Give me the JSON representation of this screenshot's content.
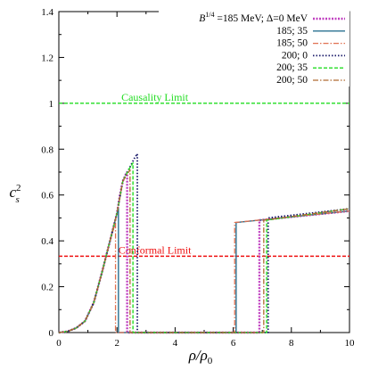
{
  "chart_data": {
    "type": "line",
    "xlabel": "ρ/ρ",
    "xlabel_sub": "0",
    "ylabel": "c",
    "ylabel_sup": "2",
    "ylabel_sub": "s",
    "xlim": [
      0,
      10
    ],
    "ylim": [
      0,
      1.4
    ],
    "xticks": [
      "0",
      "2",
      "4",
      "6",
      "8",
      "10"
    ],
    "yticks": [
      "0",
      "0.2",
      "0.4",
      "0.6",
      "0.8",
      "1",
      "1.2",
      "1.4"
    ],
    "legend_position": "top-right",
    "reference_lines": [
      {
        "label": "Causality Limit",
        "y": 1.0,
        "color": "#22dd22"
      },
      {
        "label": "Conformal Limit",
        "y": 0.333,
        "color": "#ee1111"
      }
    ],
    "series": [
      {
        "name": "B^{1/4}=185 MeV; Δ=0 MeV",
        "color": "#c040c0",
        "dash": "2,1.5",
        "width": 2.4,
        "x": [
          0,
          0.3,
          0.6,
          0.9,
          1.2,
          1.5,
          1.8,
          2.0,
          2.1,
          2.2,
          2.3,
          2.35,
          2.35,
          6.9,
          6.9,
          10
        ],
        "y": [
          0,
          0.005,
          0.02,
          0.05,
          0.13,
          0.27,
          0.42,
          0.52,
          0.6,
          0.66,
          0.69,
          0.7,
          0,
          0,
          0.49,
          0.53
        ]
      },
      {
        "name": "185; 35",
        "color": "#2a7090",
        "dash": "",
        "width": 1.4,
        "x": [
          0,
          0.3,
          0.6,
          0.9,
          1.2,
          1.5,
          1.8,
          2.0,
          2.05,
          2.05,
          6.1,
          6.1,
          10
        ],
        "y": [
          0,
          0.005,
          0.02,
          0.05,
          0.13,
          0.27,
          0.42,
          0.52,
          0.54,
          0,
          0,
          0.48,
          0.53
        ]
      },
      {
        "name": "185; 50",
        "color": "#e07050",
        "dash": "6,2,1.5,2",
        "width": 1.3,
        "x": [
          0,
          0.3,
          0.6,
          0.9,
          1.2,
          1.5,
          1.8,
          1.95,
          1.95,
          6.05,
          6.05,
          10
        ],
        "y": [
          0,
          0.005,
          0.02,
          0.05,
          0.13,
          0.27,
          0.42,
          0.48,
          0,
          0,
          0.48,
          0.53
        ]
      },
      {
        "name": "200; 0",
        "color": "#1a1a6a",
        "dash": "1.5,2",
        "width": 1.8,
        "x": [
          0,
          0.3,
          0.6,
          0.9,
          1.2,
          1.5,
          1.8,
          2.0,
          2.2,
          2.4,
          2.6,
          2.7,
          2.7,
          7.2,
          7.2,
          10
        ],
        "y": [
          0,
          0.005,
          0.02,
          0.05,
          0.13,
          0.27,
          0.42,
          0.52,
          0.66,
          0.71,
          0.76,
          0.78,
          0,
          0,
          0.5,
          0.54
        ]
      },
      {
        "name": "200; 35",
        "color": "#22dd22",
        "dash": "4,2",
        "width": 1.4,
        "x": [
          0,
          0.3,
          0.6,
          0.9,
          1.2,
          1.5,
          1.8,
          2.0,
          2.2,
          2.4,
          2.55,
          2.55,
          7.15,
          7.15,
          10
        ],
        "y": [
          0,
          0.005,
          0.02,
          0.05,
          0.13,
          0.27,
          0.42,
          0.52,
          0.66,
          0.71,
          0.74,
          0,
          0,
          0.49,
          0.54
        ]
      },
      {
        "name": "200; 50",
        "color": "#b06a30",
        "dash": "6,2,1.5,2",
        "width": 1.3,
        "x": [
          0,
          0.3,
          0.6,
          0.9,
          1.2,
          1.5,
          1.8,
          2.0,
          2.2,
          2.4,
          2.45,
          2.45,
          7.05,
          7.05,
          10
        ],
        "y": [
          0,
          0.005,
          0.02,
          0.05,
          0.13,
          0.27,
          0.42,
          0.52,
          0.66,
          0.7,
          0.71,
          0,
          0,
          0.49,
          0.54
        ]
      }
    ]
  }
}
